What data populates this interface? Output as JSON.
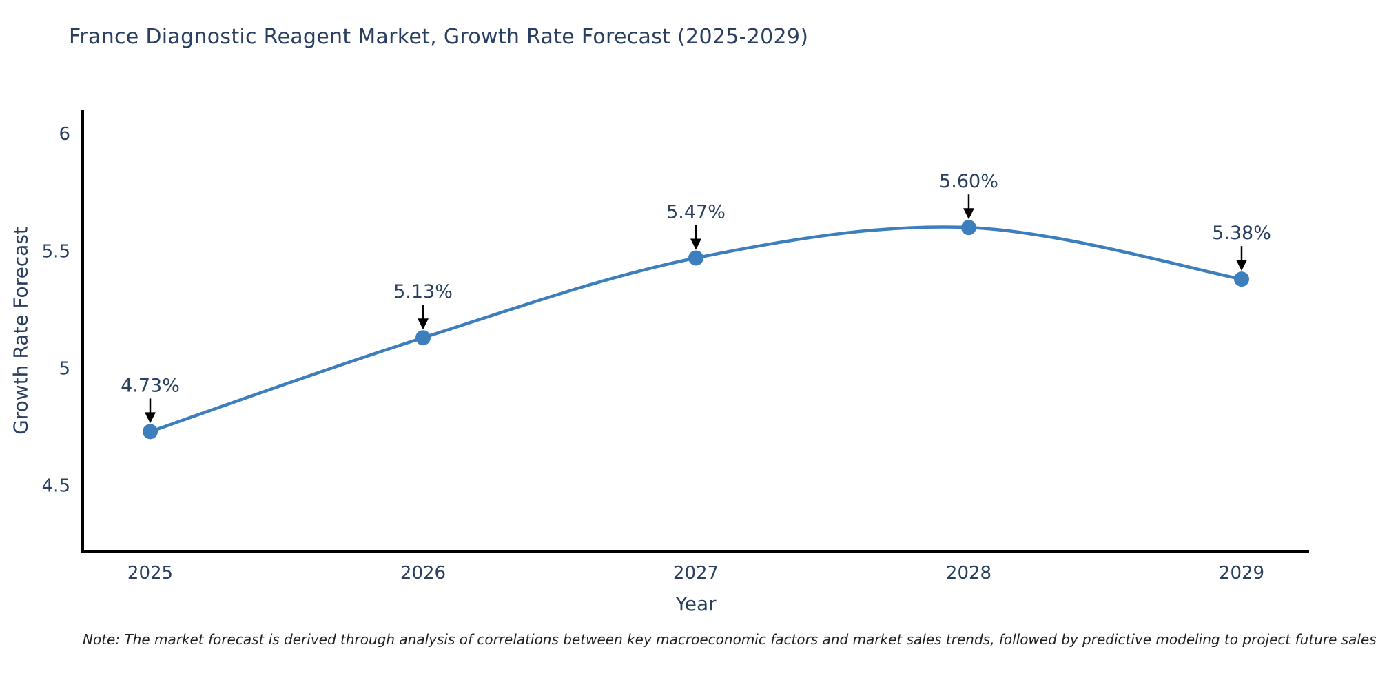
{
  "title": "France Diagnostic Reagent Market, Growth Rate Forecast (2025-2029)",
  "note": "Note: The market forecast is derived through analysis of correlations between key macroeconomic factors and market sales trends, followed by predictive modeling to project future sales",
  "colors": {
    "line": "#3d7ebd",
    "marker": "#3d7ebd",
    "axis": "#000000",
    "text": "#2a3f5f",
    "annotation_arrow": "#000000",
    "background": "#ffffff"
  },
  "chart_data": {
    "type": "line",
    "title": "France Diagnostic Reagent Market, Growth Rate Forecast (2025-2029)",
    "xlabel": "Year",
    "ylabel": "Growth Rate Forecast",
    "x": [
      2025,
      2026,
      2027,
      2028,
      2029
    ],
    "values": [
      4.73,
      5.13,
      5.47,
      5.6,
      5.38
    ],
    "point_labels": [
      "4.73%",
      "5.13%",
      "5.47%",
      "5.60%",
      "5.38%"
    ],
    "series_name": "Growth Rate Forecast",
    "xtick_labels": [
      "2025",
      "2026",
      "2027",
      "2028",
      "2029"
    ],
    "yticks": [
      4.5,
      5,
      5.5,
      6
    ],
    "ytick_labels": [
      "4.5",
      "5",
      "5.5",
      "6"
    ],
    "ylim": [
      4.22,
      6.1
    ],
    "grid": false,
    "legend_position": "none",
    "line_shape": "spline",
    "annotations": "value labels with downward arrows above each data point"
  }
}
